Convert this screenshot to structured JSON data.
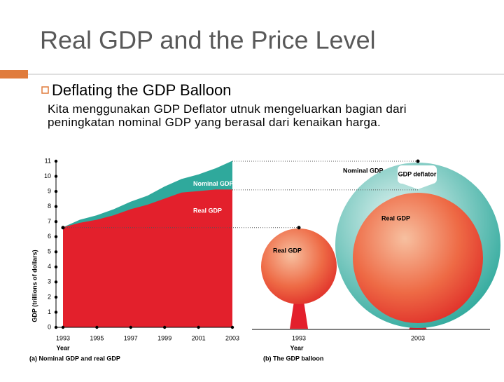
{
  "slide": {
    "title": "Real GDP and the Price Level",
    "bullet": "Deflating the GDP Balloon",
    "sub_bullet": "Kita menggunakan GDP Deflator utnuk mengeluarkan bagian dari peningkatan nominal GDP yang berasal dari kenaikan harga."
  },
  "chart_data": {
    "type": "area",
    "caption": "(a) Nominal GDP and real GDP",
    "x_label": "Year",
    "y_label": "GDP (trillions of dollars)",
    "x": [
      1993,
      1994,
      1995,
      1996,
      1997,
      1998,
      1999,
      2000,
      2001,
      2002,
      2003
    ],
    "series": [
      {
        "name": "Nominal GDP",
        "color": "#2fa99c",
        "values": [
          6.6,
          7.1,
          7.4,
          7.8,
          8.3,
          8.7,
          9.3,
          9.8,
          10.1,
          10.5,
          11.0
        ]
      },
      {
        "name": "Real GDP",
        "color": "#e3202c",
        "values": [
          6.6,
          6.9,
          7.1,
          7.4,
          7.8,
          8.1,
          8.5,
          8.9,
          9.0,
          9.1,
          9.1
        ]
      }
    ],
    "xlim": [
      1993,
      2003
    ],
    "xticks": [
      1993,
      1995,
      1997,
      1999,
      2001,
      2003
    ],
    "ylim": [
      0,
      11
    ],
    "yticks": [
      0,
      1,
      2,
      3,
      4,
      5,
      6,
      7,
      8,
      9,
      10,
      11
    ]
  },
  "panel_b": {
    "caption": "(b) The GDP balloon",
    "x_label": "Year",
    "year_small": "1993",
    "year_big": "2003",
    "nominal_label": "Nominal GDP",
    "deflator_label": "GDP deflator",
    "real_big_label": "Real GDP",
    "real_small_label": "Real GDP"
  }
}
